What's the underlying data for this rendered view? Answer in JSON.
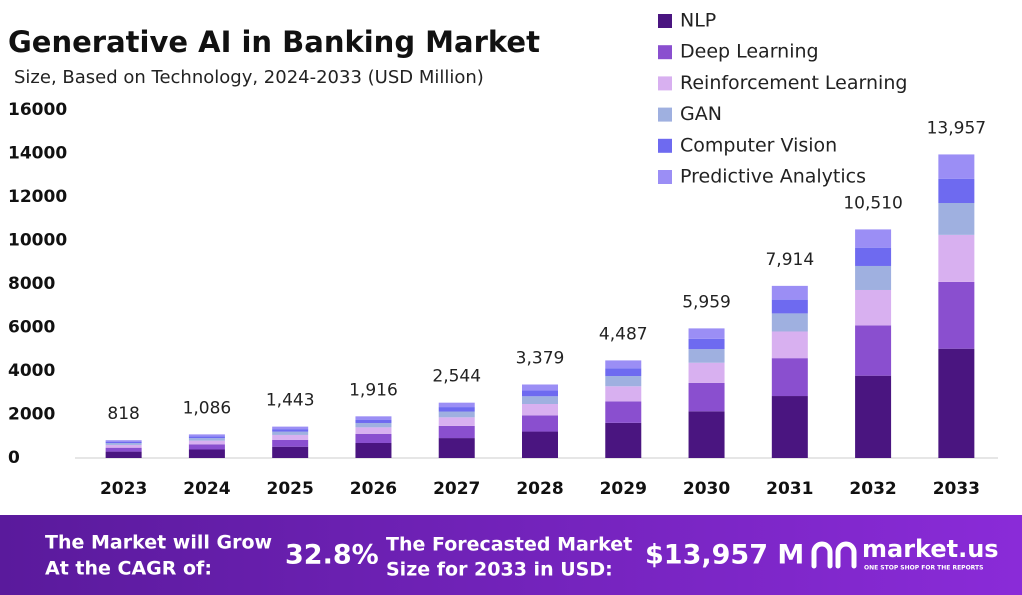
{
  "chart_data": {
    "type": "stacked_bar",
    "title": "Generative AI in Banking Market",
    "subtitle": "Size, Based on Technology, 2024-2033 (USD Million)",
    "categories": [
      "2023",
      "2024",
      "2025",
      "2026",
      "2027",
      "2028",
      "2029",
      "2030",
      "2031",
      "2032",
      "2033"
    ],
    "series": [
      {
        "name": "NLP",
        "color": "#4a1580",
        "values": [
          294,
          391,
          519,
          690,
          916,
          1216,
          1615,
          2145,
          2849,
          3784,
          5025
        ]
      },
      {
        "name": "Deep Learning",
        "color": "#8a4fcf",
        "values": [
          180,
          239,
          317,
          422,
          560,
          743,
          987,
          1311,
          1741,
          2312,
          3071
        ]
      },
      {
        "name": "Reinforcement Learning",
        "color": "#d8b0f0",
        "values": [
          127,
          168,
          224,
          297,
          394,
          524,
          695,
          924,
          1227,
          1629,
          2163
        ]
      },
      {
        "name": "GAN",
        "color": "#9fb0e0",
        "values": [
          86,
          114,
          152,
          201,
          267,
          355,
          471,
          626,
          831,
          1104,
          1465
        ]
      },
      {
        "name": "Computer Vision",
        "color": "#6e6af0",
        "values": [
          65,
          87,
          115,
          153,
          204,
          270,
          359,
          477,
          633,
          841,
          1117
        ]
      },
      {
        "name": "Predictive Analytics",
        "color": "#9b8ef5",
        "values": [
          66,
          87,
          116,
          153,
          203,
          271,
          360,
          476,
          633,
          840,
          1116
        ]
      }
    ],
    "totals": [
      818,
      {
        "value": 1086,
        "label": "1,086"
      },
      {
        "value": 1443,
        "label": "1,443"
      },
      {
        "value": 1916,
        "label": "1,916"
      },
      {
        "value": 2544,
        "label": "2,544"
      },
      {
        "value": 3379,
        "label": "3,379"
      },
      {
        "value": 4487,
        "label": "4,487"
      },
      {
        "value": 5959,
        "label": "5,959"
      },
      {
        "value": 7914,
        "label": "7,914"
      },
      {
        "value": 10510,
        "label": "10,510"
      },
      {
        "value": 13957,
        "label": "13,957"
      }
    ],
    "ylim": [
      0,
      16000
    ],
    "yticks": [
      0,
      2000,
      4000,
      6000,
      8000,
      10000,
      12000,
      14000,
      16000
    ],
    "grid": false,
    "legend": "top-right"
  },
  "footer": {
    "cagr_text": [
      "The Market will Grow",
      "At the CAGR of:"
    ],
    "cagr_value": "32.8%",
    "forecast_text": [
      "The Forecasted Market",
      "Size for 2033 in USD:"
    ],
    "forecast_value": "$13,957 M",
    "logo": "market.us",
    "tagline": "ONE STOP SHOP FOR THE REPORTS"
  }
}
